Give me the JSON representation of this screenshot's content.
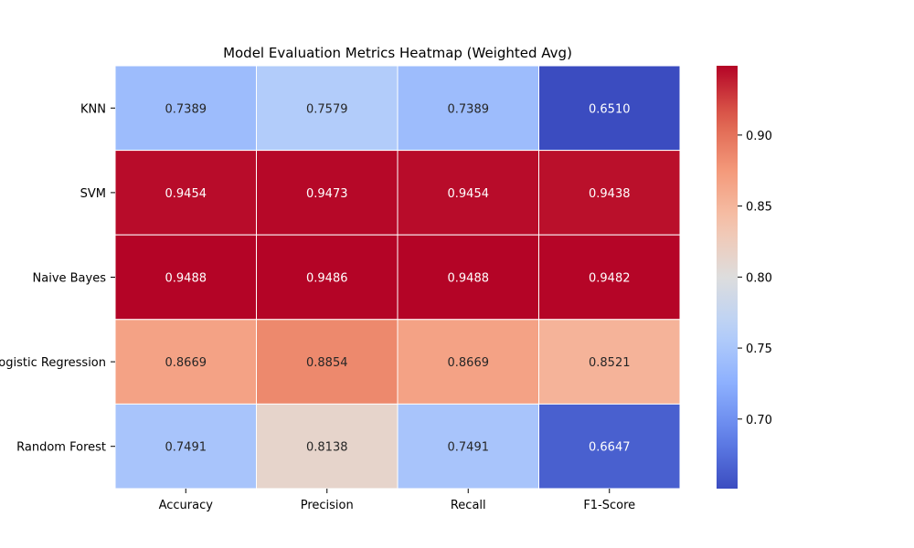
{
  "chart_data": {
    "type": "heatmap",
    "title": "Model Evaluation Metrics Heatmap (Weighted Avg)",
    "rows": [
      "KNN",
      "SVM",
      "Naive Bayes",
      "Logistic Regression",
      "Random Forest"
    ],
    "columns": [
      "Accuracy",
      "Precision",
      "Recall",
      "F1-Score"
    ],
    "values": [
      [
        0.7389,
        0.7579,
        0.7389,
        0.651
      ],
      [
        0.9454,
        0.9473,
        0.9454,
        0.9438
      ],
      [
        0.9488,
        0.9486,
        0.9488,
        0.9482
      ],
      [
        0.8669,
        0.8854,
        0.8669,
        0.8521
      ],
      [
        0.7491,
        0.8138,
        0.7491,
        0.6647
      ]
    ],
    "colormap": "coolwarm",
    "vmin": 0.651,
    "vmax": 0.9488,
    "colorbar_ticks": [
      "0.70",
      "0.75",
      "0.80",
      "0.85",
      "0.90"
    ],
    "value_format": "4 decimals"
  }
}
